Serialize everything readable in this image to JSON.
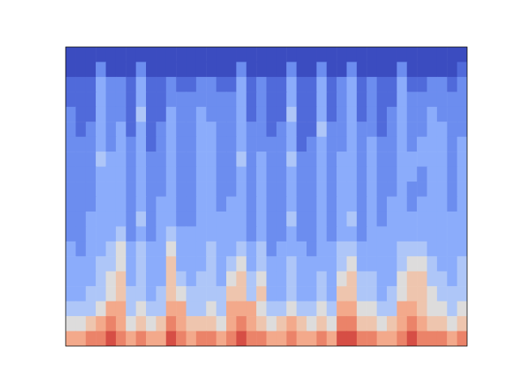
{
  "chart_data": {
    "type": "heatmap",
    "color": "coolwarm",
    "tick_labels": false,
    "color_range": [
      0,
      10
    ],
    "cells": [
      [
        0,
        0,
        0,
        0,
        0,
        0,
        0,
        0,
        0,
        0,
        0,
        0,
        0,
        0,
        0,
        0,
        0,
        0,
        0,
        0,
        0,
        0,
        0,
        0,
        0,
        0,
        0,
        0,
        0,
        0,
        0,
        0,
        0,
        0,
        0,
        0,
        0,
        0,
        0,
        0
      ],
      [
        0,
        0,
        0,
        2,
        0,
        0,
        0,
        2,
        0,
        0,
        0,
        0,
        0,
        0,
        0,
        0,
        0,
        2,
        0,
        0,
        0,
        0,
        2,
        0,
        0,
        2,
        0,
        0,
        2,
        0,
        0,
        0,
        0,
        2,
        0,
        0,
        0,
        0,
        0,
        1
      ],
      [
        1,
        1,
        1,
        3,
        2,
        2,
        1,
        3,
        1,
        1,
        2,
        1,
        1,
        2,
        2,
        1,
        1,
        3,
        1,
        2,
        1,
        1,
        3,
        1,
        1,
        3,
        1,
        2,
        3,
        1,
        2,
        1,
        1,
        3,
        1,
        1,
        2,
        2,
        1,
        2
      ],
      [
        1,
        1,
        1,
        3,
        2,
        2,
        1,
        3,
        1,
        1,
        2,
        2,
        2,
        2,
        2,
        2,
        2,
        3,
        1,
        2,
        1,
        1,
        3,
        1,
        1,
        3,
        1,
        2,
        3,
        1,
        2,
        1,
        1,
        3,
        2,
        2,
        2,
        2,
        2,
        2
      ],
      [
        2,
        1,
        1,
        3,
        2,
        2,
        1,
        4,
        1,
        1,
        3,
        2,
        2,
        3,
        2,
        2,
        2,
        3,
        1,
        2,
        1,
        1,
        4,
        1,
        1,
        3,
        1,
        2,
        3,
        1,
        2,
        1,
        2,
        3,
        2,
        2,
        3,
        2,
        2,
        2
      ],
      [
        2,
        1,
        2,
        3,
        2,
        3,
        1,
        3,
        1,
        2,
        3,
        2,
        2,
        3,
        3,
        2,
        2,
        3,
        2,
        2,
        1,
        2,
        3,
        1,
        1,
        4,
        2,
        2,
        3,
        2,
        2,
        1,
        2,
        3,
        2,
        2,
        3,
        3,
        2,
        2
      ],
      [
        2,
        2,
        2,
        3,
        2,
        3,
        2,
        3,
        1,
        2,
        3,
        2,
        2,
        3,
        3,
        2,
        2,
        3,
        2,
        2,
        2,
        2,
        3,
        1,
        2,
        3,
        2,
        2,
        3,
        2,
        3,
        2,
        2,
        3,
        2,
        3,
        3,
        3,
        2,
        3
      ],
      [
        2,
        2,
        2,
        4,
        3,
        3,
        2,
        3,
        2,
        2,
        3,
        2,
        2,
        3,
        3,
        2,
        2,
        4,
        2,
        3,
        2,
        2,
        4,
        2,
        2,
        3,
        2,
        3,
        3,
        2,
        3,
        2,
        2,
        3,
        3,
        3,
        3,
        3,
        2,
        3
      ],
      [
        2,
        2,
        2,
        3,
        3,
        3,
        2,
        3,
        2,
        2,
        3,
        2,
        2,
        3,
        3,
        2,
        2,
        3,
        2,
        3,
        2,
        2,
        3,
        2,
        2,
        3,
        2,
        3,
        3,
        2,
        3,
        2,
        2,
        3,
        3,
        2,
        3,
        3,
        2,
        3
      ],
      [
        2,
        2,
        2,
        3,
        3,
        3,
        2,
        3,
        2,
        2,
        3,
        2,
        2,
        3,
        3,
        2,
        2,
        3,
        2,
        3,
        2,
        2,
        3,
        2,
        2,
        3,
        2,
        3,
        3,
        2,
        3,
        2,
        2,
        3,
        2,
        2,
        3,
        3,
        2,
        3
      ],
      [
        2,
        2,
        2,
        3,
        3,
        3,
        2,
        3,
        2,
        3,
        3,
        2,
        2,
        3,
        3,
        2,
        3,
        3,
        2,
        3,
        2,
        2,
        3,
        2,
        2,
        3,
        2,
        3,
        3,
        2,
        3,
        2,
        3,
        3,
        2,
        3,
        3,
        3,
        2,
        3
      ],
      [
        2,
        2,
        3,
        3,
        3,
        3,
        2,
        4,
        2,
        3,
        3,
        2,
        2,
        3,
        3,
        3,
        3,
        3,
        2,
        3,
        2,
        2,
        4,
        2,
        2,
        3,
        2,
        3,
        4,
        2,
        3,
        2,
        3,
        3,
        3,
        3,
        3,
        3,
        3,
        3
      ],
      [
        2,
        2,
        3,
        3,
        3,
        4,
        2,
        3,
        2,
        3,
        4,
        3,
        3,
        3,
        3,
        3,
        3,
        3,
        2,
        3,
        2,
        2,
        3,
        2,
        2,
        3,
        2,
        3,
        3,
        2,
        3,
        3,
        3,
        3,
        3,
        3,
        3,
        3,
        3,
        3
      ],
      [
        3,
        2,
        3,
        3,
        4,
        5,
        3,
        4,
        3,
        3,
        5,
        3,
        3,
        3,
        4,
        3,
        3,
        4,
        3,
        4,
        2,
        3,
        3,
        3,
        2,
        3,
        3,
        4,
        4,
        3,
        3,
        3,
        3,
        4,
        4,
        4,
        3,
        3,
        3,
        3
      ],
      [
        3,
        3,
        3,
        4,
        4,
        5,
        3,
        4,
        3,
        3,
        6,
        3,
        3,
        3,
        4,
        3,
        4,
        5,
        3,
        4,
        3,
        3,
        4,
        3,
        3,
        3,
        3,
        4,
        5,
        3,
        3,
        3,
        3,
        4,
        5,
        5,
        4,
        3,
        3,
        4
      ],
      [
        3,
        3,
        3,
        4,
        5,
        6,
        3,
        4,
        3,
        3,
        6,
        4,
        3,
        4,
        4,
        3,
        5,
        6,
        4,
        5,
        3,
        3,
        4,
        3,
        3,
        4,
        3,
        5,
        6,
        4,
        4,
        3,
        3,
        5,
        6,
        6,
        4,
        4,
        3,
        4
      ],
      [
        3,
        3,
        4,
        4,
        5,
        6,
        4,
        4,
        3,
        4,
        6,
        5,
        4,
        4,
        4,
        4,
        6,
        6,
        4,
        6,
        3,
        3,
        4,
        3,
        3,
        4,
        3,
        6,
        6,
        4,
        4,
        3,
        4,
        5,
        6,
        6,
        5,
        4,
        4,
        4
      ],
      [
        4,
        4,
        4,
        5,
        7,
        7,
        4,
        5,
        4,
        4,
        7,
        7,
        4,
        4,
        5,
        4,
        7,
        7,
        7,
        5,
        4,
        4,
        5,
        4,
        4,
        5,
        4,
        7,
        7,
        5,
        5,
        4,
        4,
        7,
        7,
        6,
        5,
        5,
        4,
        5
      ],
      [
        5,
        5,
        6,
        7,
        8,
        7,
        5,
        6,
        5,
        6,
        8,
        7,
        6,
        6,
        6,
        5,
        7,
        8,
        7,
        6,
        5,
        6,
        7,
        6,
        5,
        6,
        5,
        8,
        8,
        6,
        6,
        5,
        6,
        7,
        8,
        7,
        6,
        6,
        5,
        6
      ],
      [
        7,
        7,
        8,
        8,
        9,
        8,
        7,
        8,
        7,
        7,
        9,
        8,
        7,
        8,
        8,
        7,
        8,
        9,
        8,
        8,
        7,
        7,
        8,
        7,
        7,
        8,
        7,
        9,
        9,
        8,
        8,
        7,
        7,
        8,
        9,
        8,
        8,
        8,
        7,
        8
      ]
    ]
  }
}
